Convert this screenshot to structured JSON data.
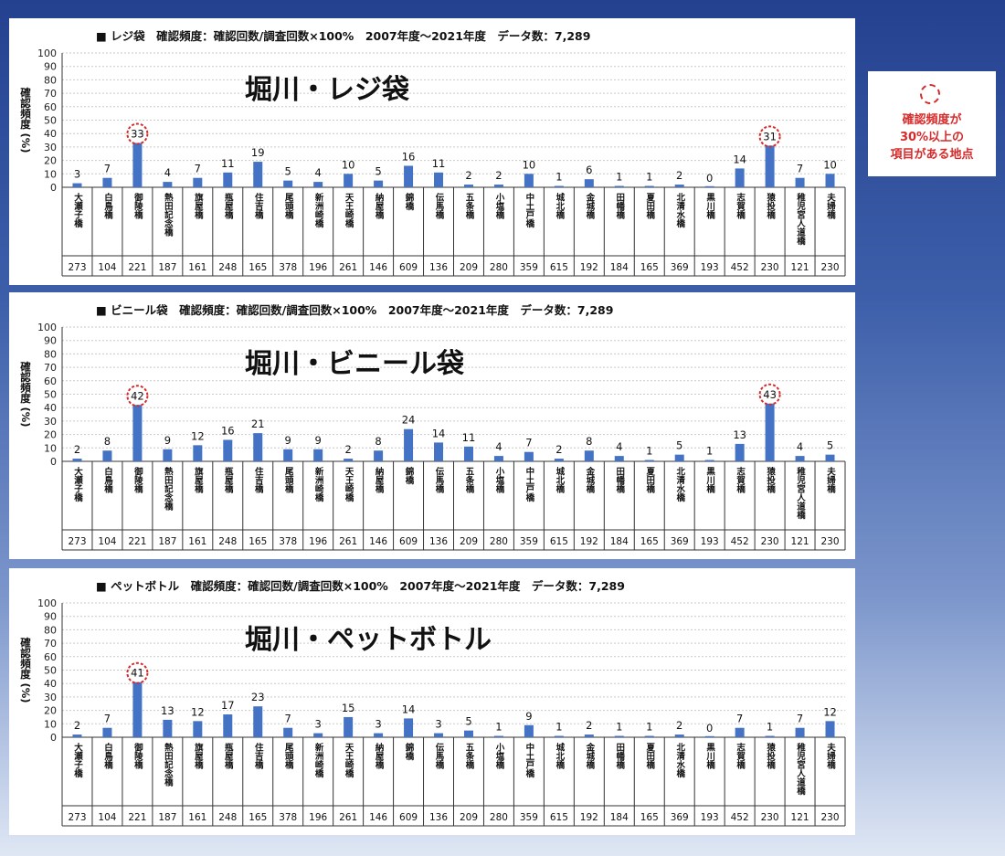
{
  "chart_data": [
    {
      "type": "bar",
      "title": "■ レジ袋　確認頻度：確認回数/調査回数×100%　2007年度～2021年度　データ数：7,289",
      "overlay_title": "堀川・レジ袋",
      "ylabel": "確認頻度 (%)",
      "ylim": [
        0,
        100
      ],
      "yticks": [
        0,
        10,
        20,
        30,
        40,
        50,
        60,
        70,
        80,
        90,
        100
      ],
      "grid": true,
      "categories": [
        "大瀬子橋",
        "白鳥橋",
        "御陵橋",
        "熱田記念橋",
        "旗屋橋",
        "瓶屋橋",
        "住吉橋",
        "尾頭橋",
        "新洲崎橋",
        "天王崎橋",
        "納屋橋",
        "錦橋",
        "伝馬橋",
        "五条橋",
        "小塩橋",
        "中土戸橋",
        "城北橋",
        "金城橋",
        "田幡橋",
        "夏田橋",
        "北清水橋",
        "黒川橋",
        "志賀橋",
        "猿投橋",
        "稚児宮人道橋",
        "夫婦橋"
      ],
      "values": [
        3,
        7,
        33,
        4,
        7,
        11,
        19,
        5,
        4,
        10,
        5,
        16,
        11,
        2,
        2,
        10,
        1,
        6,
        1,
        1,
        2,
        0,
        14,
        31,
        7,
        10
      ],
      "value_labels": [
        "3",
        "7",
        "33",
        "4",
        "7",
        "11",
        "19",
        "5",
        "4",
        "10",
        "5",
        "16",
        "11",
        "2",
        "2",
        "10",
        "1",
        "6",
        "1",
        "1",
        "2",
        "0",
        "14",
        "31",
        "7",
        "10"
      ],
      "counts": [
        "273",
        "104",
        "221",
        "187",
        "161",
        "248",
        "165",
        "378",
        "196",
        "261",
        "146",
        "609",
        "136",
        "209",
        "280",
        "359",
        "615",
        "192",
        "184",
        "165",
        "369",
        "193",
        "452",
        "230",
        "121",
        "230"
      ],
      "highlight_threshold": 30,
      "bar_color": "#4472c4",
      "highlight_color": "#d62b2b"
    },
    {
      "type": "bar",
      "title": "■ ビニール袋　確認頻度：確認回数/調査回数×100%　2007年度～2021年度　データ数：7,289",
      "overlay_title": "堀川・ビニール袋",
      "ylabel": "確認頻度 (%)",
      "ylim": [
        0,
        100
      ],
      "yticks": [
        0,
        10,
        20,
        30,
        40,
        50,
        60,
        70,
        80,
        90,
        100
      ],
      "grid": true,
      "categories": [
        "大瀬子橋",
        "白鳥橋",
        "御陵橋",
        "熱田記念橋",
        "旗屋橋",
        "瓶屋橋",
        "住吉橋",
        "尾頭橋",
        "新洲崎橋",
        "天王崎橋",
        "納屋橋",
        "錦橋",
        "伝馬橋",
        "五条橋",
        "小塩橋",
        "中土戸橋",
        "城北橋",
        "金城橋",
        "田幡橋",
        "夏田橋",
        "北清水橋",
        "黒川橋",
        "志賀橋",
        "猿投橋",
        "稚児宮人道橋",
        "夫婦橋"
      ],
      "values": [
        2,
        8,
        42,
        9,
        12,
        16,
        21,
        9,
        9,
        2,
        8,
        24,
        14,
        11,
        4,
        7,
        2,
        8,
        4,
        1,
        5,
        1,
        13,
        43,
        4,
        5
      ],
      "value_labels": [
        "2",
        "8",
        "42",
        "9",
        "12",
        "16",
        "21",
        "9",
        "9",
        "2",
        "8",
        "24",
        "14",
        "11",
        "4",
        "7",
        "2",
        "8",
        "4",
        "1",
        "5",
        "1",
        "13",
        "43",
        "4",
        "5"
      ],
      "counts": [
        "273",
        "104",
        "221",
        "187",
        "161",
        "248",
        "165",
        "378",
        "196",
        "261",
        "146",
        "609",
        "136",
        "209",
        "280",
        "359",
        "615",
        "192",
        "184",
        "165",
        "369",
        "193",
        "452",
        "230",
        "121",
        "230"
      ],
      "highlight_threshold": 30,
      "bar_color": "#4472c4",
      "highlight_color": "#d62b2b"
    },
    {
      "type": "bar",
      "title": "■ ペットボトル　確認頻度：確認回数/調査回数×100%　2007年度～2021年度　データ数：7,289",
      "overlay_title": "堀川・ペットボトル",
      "ylabel": "確認頻度 (%)",
      "ylim": [
        0,
        100
      ],
      "yticks": [
        0,
        10,
        20,
        30,
        40,
        50,
        60,
        70,
        80,
        90,
        100
      ],
      "grid": true,
      "categories": [
        "大瀬子橋",
        "白鳥橋",
        "御陵橋",
        "熱田記念橋",
        "旗屋橋",
        "瓶屋橋",
        "住吉橋",
        "尾頭橋",
        "新洲崎橋",
        "天王崎橋",
        "納屋橋",
        "錦橋",
        "伝馬橋",
        "五条橋",
        "小塩橋",
        "中土戸橋",
        "城北橋",
        "金城橋",
        "田幡橋",
        "夏田橋",
        "北清水橋",
        "黒川橋",
        "志賀橋",
        "猿投橋",
        "稚児宮人道橋",
        "夫婦橋"
      ],
      "values": [
        2,
        7,
        41,
        13,
        12,
        17,
        23,
        7,
        3,
        15,
        3,
        14,
        3,
        5,
        1,
        9,
        1,
        2,
        1,
        1,
        2,
        0,
        7,
        1,
        7,
        12
      ],
      "value_labels": [
        "2",
        "7",
        "41",
        "13",
        "12",
        "17",
        "23",
        "7",
        "3",
        "15",
        "3",
        "14",
        "3",
        "5",
        "1",
        "9",
        "1",
        "2",
        "1",
        "1",
        "2",
        "0",
        "7",
        "1",
        "7",
        "12"
      ],
      "counts": [
        "273",
        "104",
        "221",
        "187",
        "161",
        "248",
        "165",
        "378",
        "196",
        "261",
        "146",
        "609",
        "136",
        "209",
        "280",
        "359",
        "615",
        "192",
        "184",
        "165",
        "369",
        "193",
        "452",
        "230",
        "121",
        "230"
      ],
      "highlight_threshold": 30,
      "bar_color": "#4472c4",
      "highlight_color": "#d62b2b"
    }
  ],
  "legend": {
    "line1": "確認頻度が",
    "line2": "30%以上の",
    "line3": "項目がある地点",
    "circle_color": "#d62b2b"
  }
}
